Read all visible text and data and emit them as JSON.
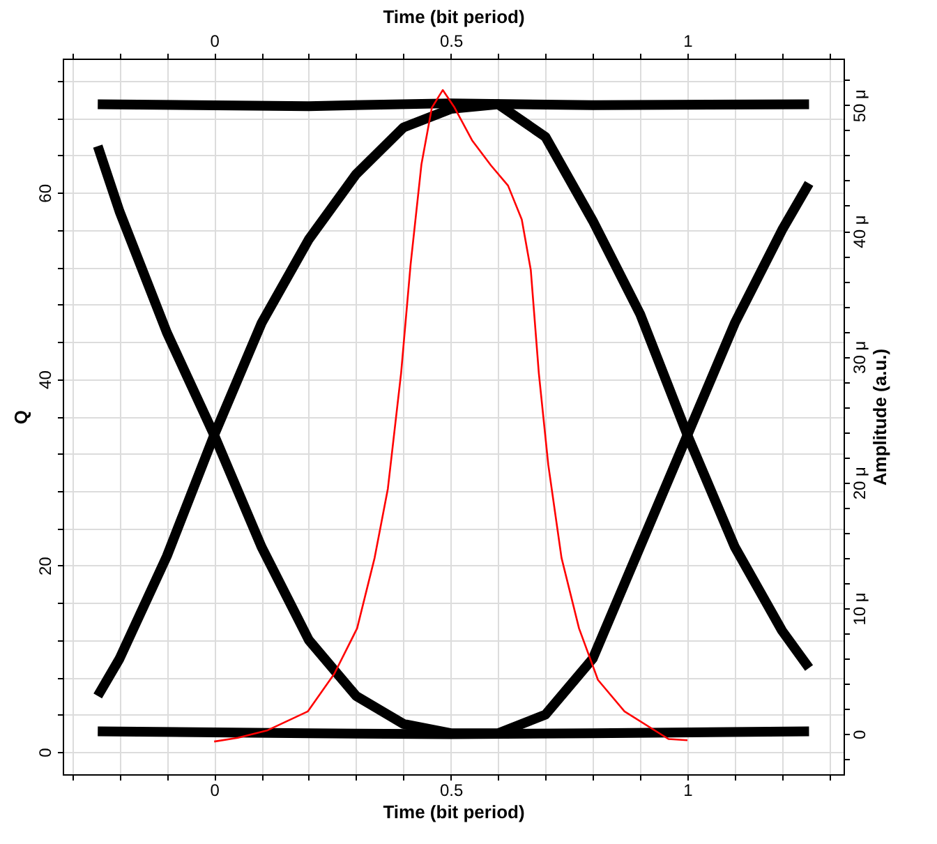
{
  "chart_data": {
    "type": "line",
    "xlabel": "Time (bit period)",
    "x2label": "Time (bit period)",
    "ylabel": "Q",
    "y2label": "Amplitude (a.u.)",
    "xlim": [
      -0.32,
      1.33
    ],
    "x2lim": [
      -0.32,
      1.33
    ],
    "xticks": [
      {
        "value": -0.3,
        "label": null
      },
      {
        "value": -0.2,
        "label": null
      },
      {
        "value": -0.1,
        "label": null
      },
      0,
      {
        "value": 0.1,
        "label": null
      },
      {
        "value": 0.2,
        "label": null
      },
      {
        "value": 0.3,
        "label": null
      },
      {
        "value": 0.4,
        "label": null
      },
      0.5,
      {
        "value": 0.6,
        "label": null
      },
      {
        "value": 0.7,
        "label": null
      },
      {
        "value": 0.8,
        "label": null
      },
      {
        "value": 0.9,
        "label": null
      },
      1,
      {
        "value": 1.1,
        "label": null
      },
      {
        "value": 1.2,
        "label": null
      },
      {
        "value": 1.3,
        "label": null
      }
    ],
    "x2ticks": [
      {
        "value": -0.3,
        "label": null
      },
      {
        "value": -0.2,
        "label": null
      },
      {
        "value": -0.1,
        "label": null
      },
      0,
      {
        "value": 0.1,
        "label": null
      },
      {
        "value": 0.2,
        "label": null
      },
      {
        "value": 0.3,
        "label": null
      },
      {
        "value": 0.4,
        "label": null
      },
      0.5,
      {
        "value": 0.6,
        "label": null
      },
      {
        "value": 0.7,
        "label": null
      },
      {
        "value": 0.8,
        "label": null
      },
      {
        "value": 0.9,
        "label": null
      },
      1,
      {
        "value": 1.1,
        "label": null
      },
      {
        "value": 1.2,
        "label": null
      },
      {
        "value": 1.3,
        "label": null
      }
    ],
    "ylim": [
      -2.4,
      74.4
    ],
    "yticks": [
      0,
      {
        "value": 4,
        "label": null
      },
      {
        "value": 8,
        "label": null
      },
      {
        "value": 12,
        "label": null
      },
      {
        "value": 16,
        "label": null
      },
      20,
      {
        "value": 24,
        "label": null
      },
      {
        "value": 28,
        "label": null
      },
      {
        "value": 32,
        "label": null
      },
      {
        "value": 36,
        "label": null
      },
      40,
      {
        "value": 44,
        "label": null
      },
      {
        "value": 48,
        "label": null
      },
      {
        "value": 52,
        "label": null
      },
      {
        "value": 56,
        "label": null
      },
      60,
      {
        "value": 64,
        "label": null
      },
      {
        "value": 68,
        "label": null
      },
      {
        "value": 72,
        "label": null
      }
    ],
    "y2lim": [
      -3.2,
      53.7
    ],
    "y2ticks": [
      {
        "value": -2,
        "label": null
      },
      {
        "value": 0,
        "label": "0"
      },
      {
        "value": 2,
        "label": null
      },
      {
        "value": 4,
        "label": null
      },
      {
        "value": 6,
        "label": null
      },
      {
        "value": 8,
        "label": null
      },
      {
        "value": 10,
        "label": "10 μ"
      },
      {
        "value": 12,
        "label": null
      },
      {
        "value": 14,
        "label": null
      },
      {
        "value": 16,
        "label": null
      },
      {
        "value": 18,
        "label": null
      },
      {
        "value": 20,
        "label": "20 μ"
      },
      {
        "value": 22,
        "label": null
      },
      {
        "value": 24,
        "label": null
      },
      {
        "value": 26,
        "label": null
      },
      {
        "value": 28,
        "label": null
      },
      {
        "value": 30,
        "label": "30 μ"
      },
      {
        "value": 32,
        "label": null
      },
      {
        "value": 34,
        "label": null
      },
      {
        "value": 36,
        "label": null
      },
      {
        "value": 38,
        "label": null
      },
      {
        "value": 40,
        "label": "40 μ"
      },
      {
        "value": 42,
        "label": null
      },
      {
        "value": 44,
        "label": null
      },
      {
        "value": 46,
        "label": null
      },
      {
        "value": 48,
        "label": null
      },
      {
        "value": 50,
        "label": "50 μ"
      },
      {
        "value": 52,
        "label": null
      }
    ],
    "grid": true,
    "legend": false,
    "marker": "none",
    "line_style": "solid",
    "series": [
      {
        "color": "#000000",
        "x": [
          -0.246,
          0.2,
          0.5,
          0.8,
          1.257
        ],
        "values": [
          69.5,
          69.3,
          69.6,
          69.4,
          69.5
        ]
      },
      {
        "color": "#000000",
        "x": [
          -0.246,
          0.2,
          0.5,
          0.8,
          1.257
        ],
        "values": [
          2.2,
          2.0,
          1.9,
          2.0,
          2.2
        ]
      },
      {
        "color": "#000000",
        "x": [
          -0.246,
          -0.2,
          -0.1,
          0,
          0.1,
          0.2,
          0.3,
          0.4,
          0.5,
          0.6,
          0.7,
          0.8,
          0.9,
          1.0,
          1.1,
          1.2,
          1.257
        ],
        "values": [
          65,
          58,
          45,
          34,
          22,
          12,
          6,
          3,
          2,
          2,
          4,
          10,
          22,
          34,
          46,
          56,
          61
        ]
      },
      {
        "color": "#000000",
        "x": [
          -0.246,
          -0.2,
          -0.1,
          0,
          0.1,
          0.2,
          0.3,
          0.4,
          0.5,
          0.6,
          0.7,
          0.8,
          0.9,
          1.0,
          1.1,
          1.2,
          1.257
        ],
        "values": [
          6,
          10,
          21,
          34,
          46,
          55,
          62,
          67,
          69,
          69.5,
          66,
          57,
          47,
          34,
          22,
          13,
          9
        ]
      },
      {
        "color": "#ff0000",
        "axis": "y2",
        "x": [
          0,
          0.05,
          0.113,
          0.198,
          0.254,
          0.302,
          0.339,
          0.367,
          0.395,
          0.415,
          0.438,
          0.46,
          0.483,
          0.508,
          0.545,
          0.585,
          0.621,
          0.65,
          0.669,
          0.686,
          0.706,
          0.734,
          0.771,
          0.811,
          0.867,
          0.96,
          1.0
        ],
        "values": [
          -0.6,
          -0.3,
          0.3,
          1.8,
          4.8,
          8.4,
          14.0,
          19.5,
          28.7,
          37.3,
          45.3,
          49.8,
          51.2,
          49.8,
          47.2,
          45.2,
          43.6,
          40.9,
          36.9,
          28.7,
          21.4,
          14.0,
          8.4,
          4.3,
          1.8,
          -0.4,
          -0.5
        ]
      }
    ]
  }
}
